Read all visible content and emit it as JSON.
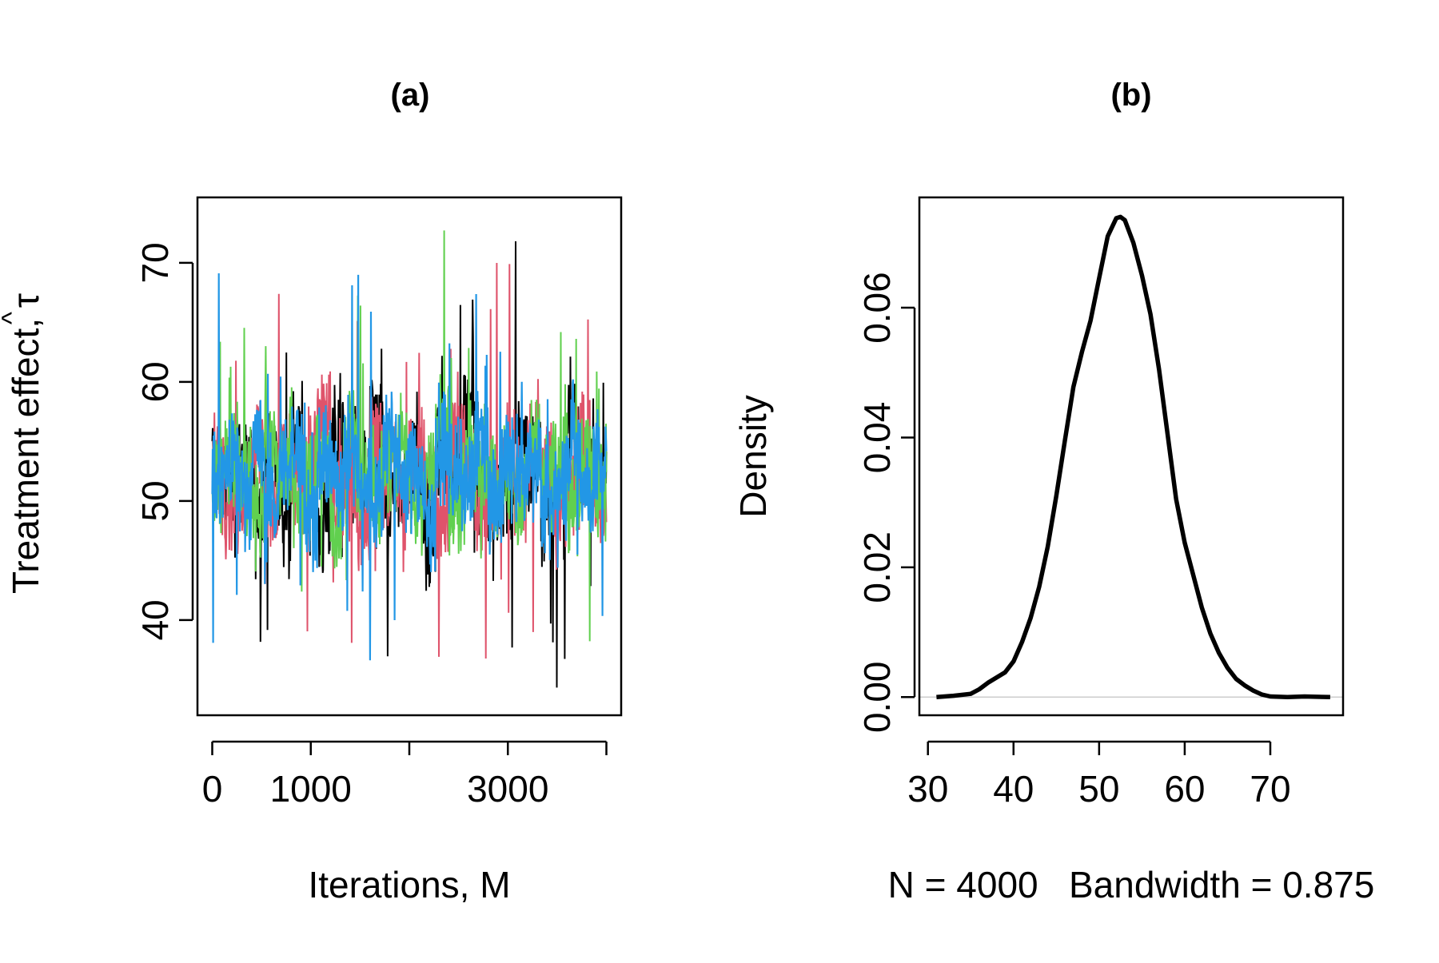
{
  "chart_data": [
    {
      "panel": "(a)",
      "type": "line",
      "title": "(a)",
      "xlabel": "Iterations, M",
      "ylabel": "Treatment effect, τ",
      "ylabel_hat": "^",
      "xlim": [
        -150,
        4150
      ],
      "ylim": [
        32,
        75.5
      ],
      "xticks": [
        0,
        1000,
        2000,
        3000,
        4000
      ],
      "xtick_labels": [
        "0",
        "1000",
        "",
        "3000",
        ""
      ],
      "yticks": [
        40,
        50,
        60,
        70
      ],
      "ytick_labels": [
        "40",
        "50",
        "60",
        "70"
      ],
      "grid": false,
      "legend": "none",
      "series_summary": {
        "iterations": 4000,
        "center": 52.5,
        "typical_range": [
          44,
          61
        ],
        "min": 32,
        "max": 74.2
      },
      "series": [
        {
          "color": "#000000",
          "values": [
            52,
            51,
            53,
            50,
            54,
            49,
            55,
            52,
            48,
            56,
            53,
            51,
            57,
            50,
            52,
            54,
            47,
            55,
            53,
            58,
            52,
            49,
            51,
            55,
            53,
            50,
            52,
            56,
            54,
            51
          ]
        },
        {
          "color": "#DF536B",
          "values": [
            53,
            50,
            52,
            55,
            49,
            54,
            51,
            53,
            57,
            50,
            52,
            48,
            55,
            53,
            51,
            54,
            52,
            49,
            56,
            53,
            50,
            52,
            54,
            51,
            55,
            53,
            49,
            52,
            54,
            50
          ]
        },
        {
          "color": "#61D04F",
          "values": [
            51,
            54,
            52,
            49,
            55,
            53,
            50,
            52,
            54,
            48,
            56,
            52,
            51,
            53,
            55,
            50,
            52,
            57,
            49,
            53,
            54,
            51,
            52,
            50,
            55,
            52,
            53,
            49,
            54,
            52
          ]
        },
        {
          "color": "#2297E6",
          "values": [
            52,
            53,
            51,
            54,
            50,
            52,
            55,
            49,
            53,
            52,
            54,
            51,
            50,
            56,
            52,
            53,
            49,
            54,
            52,
            51,
            55,
            50,
            53,
            52,
            54,
            49,
            52,
            55,
            51,
            53
          ]
        }
      ]
    },
    {
      "panel": "(b)",
      "type": "line",
      "title": "(b)",
      "xlabel": "N = 4000   Bandwidth = 0.875",
      "ylabel": "Density",
      "xlim": [
        29,
        78.5
      ],
      "ylim": [
        -0.0028,
        0.077
      ],
      "xticks": [
        30,
        40,
        50,
        60,
        70
      ],
      "xtick_labels": [
        "30",
        "40",
        "50",
        "60",
        "70"
      ],
      "yticks": [
        0,
        0.02,
        0.04,
        0.06
      ],
      "ytick_labels": [
        "0.00",
        "0.02",
        "0.04",
        "0.06"
      ],
      "grid": false,
      "legend": "none",
      "x": [
        31,
        33,
        35,
        36,
        37,
        38,
        39,
        40,
        41,
        42,
        43,
        44,
        45,
        46,
        47,
        48,
        49,
        50,
        51,
        52,
        52.5,
        53,
        54,
        55,
        56,
        57,
        58,
        59,
        60,
        61,
        62,
        63,
        64,
        65,
        66,
        67,
        68,
        69,
        70,
        72,
        74,
        77
      ],
      "y": [
        0.0,
        0.0002,
        0.0005,
        0.0012,
        0.0022,
        0.003,
        0.0038,
        0.0055,
        0.0085,
        0.0122,
        0.017,
        0.0232,
        0.031,
        0.0395,
        0.0478,
        0.0532,
        0.058,
        0.0645,
        0.071,
        0.0738,
        0.074,
        0.0735,
        0.07,
        0.065,
        0.059,
        0.0505,
        0.0405,
        0.0305,
        0.0238,
        0.0188,
        0.0138,
        0.0098,
        0.0068,
        0.0045,
        0.0028,
        0.0018,
        0.001,
        0.0004,
        0.0001,
        0.0,
        0.0001,
        0.0
      ],
      "baseline": 0
    }
  ]
}
